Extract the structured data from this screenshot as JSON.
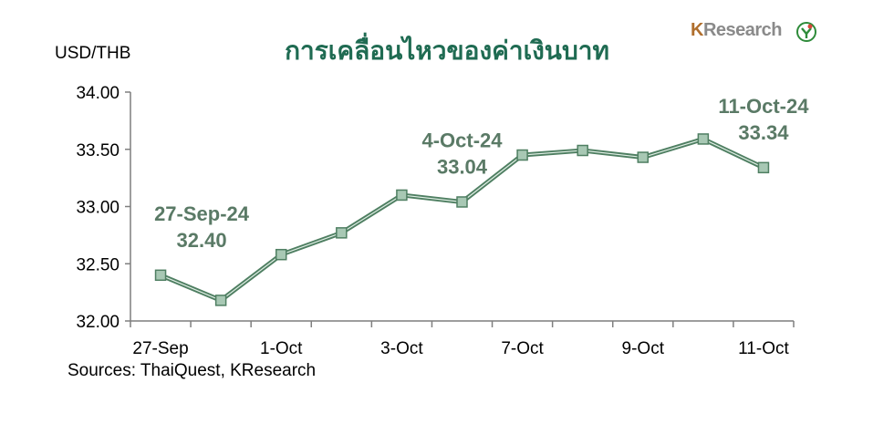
{
  "header": {
    "title": "การเคลื่อนไหวของค่าเงินบาท",
    "unit_label": "USD/THB",
    "logo_k": "K",
    "logo_rest": "Research"
  },
  "footer": {
    "source": "Sources: ThaiQuest, KResearch"
  },
  "colors": {
    "line": "#4f7f62",
    "marker_fill": "#a8c8b4",
    "marker_stroke": "#4f7f62",
    "title": "#1f6b52",
    "annotation": "#5a7a66",
    "logo_icon": "#2e8b3a",
    "logo_accent": "#d9453a"
  },
  "chart_data": {
    "type": "line",
    "title": "การเคลื่อนไหวของค่าเงินบาท",
    "ylabel": "USD/THB",
    "xlabel": "",
    "ylim": [
      32.0,
      34.0
    ],
    "yticks": [
      "32.00",
      "32.50",
      "33.00",
      "33.50",
      "34.00"
    ],
    "ytick_values": [
      32.0,
      32.5,
      33.0,
      33.5,
      34.0
    ],
    "xtick_labels": [
      "27-Sep",
      "1-Oct",
      "3-Oct",
      "7-Oct",
      "9-Oct",
      "11-Oct"
    ],
    "xtick_index": [
      0,
      2,
      4,
      6,
      8,
      10
    ],
    "series": [
      {
        "values": [
          32.4,
          32.18,
          32.58,
          32.77,
          33.1,
          33.04,
          33.45,
          33.49,
          33.43,
          33.59,
          33.34
        ]
      }
    ],
    "annotations": [
      {
        "index": 0,
        "date": "27-Sep-24",
        "value": "32.40"
      },
      {
        "index": 5,
        "date": "4-Oct-24",
        "value": "33.04"
      },
      {
        "index": 10,
        "date": "11-Oct-24",
        "value": "33.34"
      }
    ],
    "grid": false,
    "legend": "none"
  }
}
